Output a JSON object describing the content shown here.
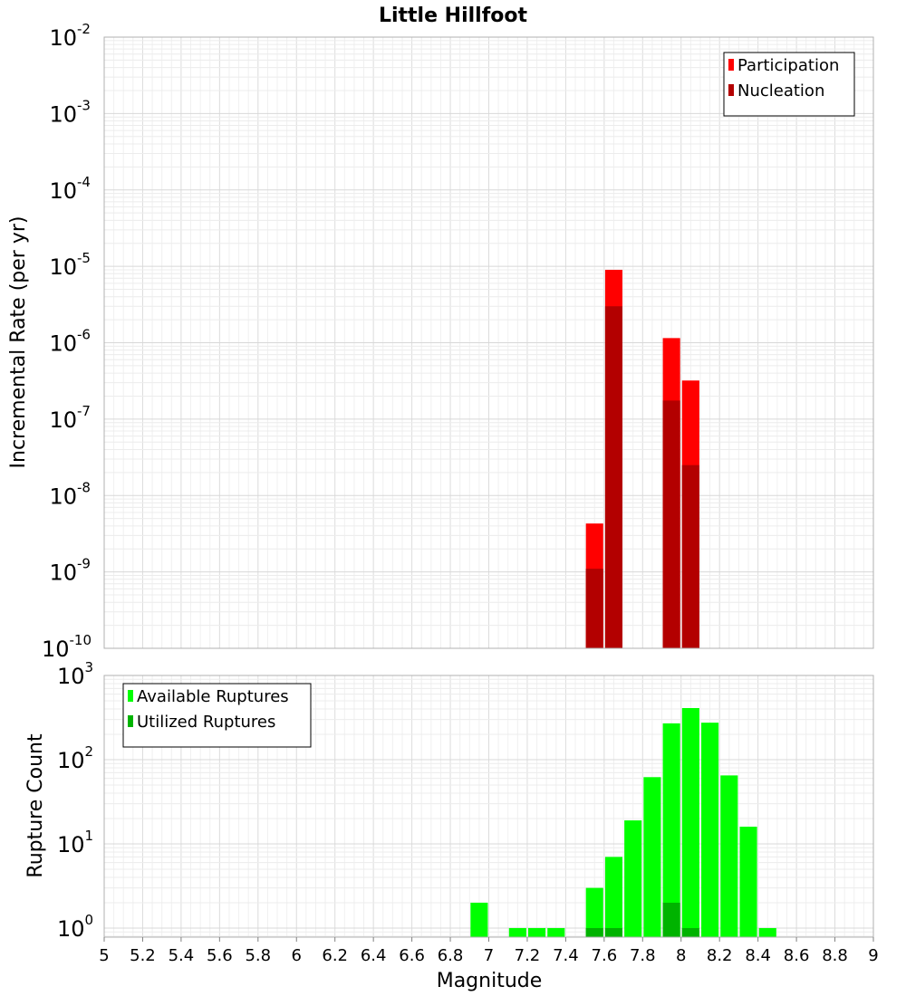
{
  "chart_data": [
    {
      "type": "bar",
      "panel": "top",
      "title": "Little Hillfoot",
      "xlabel": "",
      "ylabel": "Incremental Rate (per yr)",
      "yscale": "log",
      "xlim": [
        5,
        9
      ],
      "ylim": [
        1e-10,
        0.01
      ],
      "y_ticks": [
        {
          "base": "10",
          "exp": "-10"
        },
        {
          "base": "10",
          "exp": "-9"
        },
        {
          "base": "10",
          "exp": "-8"
        },
        {
          "base": "10",
          "exp": "-7"
        },
        {
          "base": "10",
          "exp": "-6"
        },
        {
          "base": "10",
          "exp": "-5"
        },
        {
          "base": "10",
          "exp": "-4"
        },
        {
          "base": "10",
          "exp": "-3"
        },
        {
          "base": "10",
          "exp": "-2"
        }
      ],
      "legend_position": "top-right",
      "series": [
        {
          "name": "Participation",
          "color": "#ff0000",
          "points": [
            [
              7.55,
              4.3e-09
            ],
            [
              7.65,
              9e-06
            ],
            [
              7.95,
              1.15e-06
            ],
            [
              8.05,
              3.2e-07
            ]
          ]
        },
        {
          "name": "Nucleation",
          "color": "#b30000",
          "points": [
            [
              7.55,
              1.1e-09
            ],
            [
              7.65,
              3e-06
            ],
            [
              7.95,
              1.75e-07
            ],
            [
              8.05,
              2.5e-08
            ]
          ]
        }
      ]
    },
    {
      "type": "bar",
      "panel": "bottom",
      "title": "",
      "xlabel": "Magnitude",
      "ylabel": "Rupture Count",
      "yscale": "log",
      "xlim": [
        5,
        9
      ],
      "ylim": [
        0.78,
        1000
      ],
      "x_ticks": [
        "5",
        "5.2",
        "5.4",
        "5.6",
        "5.8",
        "6",
        "6.2",
        "6.4",
        "6.6",
        "6.8",
        "7",
        "7.2",
        "7.4",
        "7.6",
        "7.8",
        "8",
        "8.2",
        "8.4",
        "8.6",
        "8.8",
        "9"
      ],
      "y_ticks": [
        {
          "base": "10",
          "exp": "0"
        },
        {
          "base": "10",
          "exp": "1"
        },
        {
          "base": "10",
          "exp": "2"
        },
        {
          "base": "10",
          "exp": "3"
        }
      ],
      "legend_position": "top-left",
      "series": [
        {
          "name": "Available Ruptures",
          "color": "#00ff00",
          "points": [
            [
              6.95,
              2
            ],
            [
              7.15,
              1
            ],
            [
              7.25,
              1
            ],
            [
              7.35,
              1
            ],
            [
              7.55,
              3
            ],
            [
              7.65,
              7
            ],
            [
              7.75,
              19
            ],
            [
              7.85,
              62
            ],
            [
              7.95,
              270
            ],
            [
              8.05,
              410
            ],
            [
              8.15,
              275
            ],
            [
              8.25,
              65
            ],
            [
              8.35,
              16
            ],
            [
              8.45,
              1
            ]
          ]
        },
        {
          "name": "Utilized Ruptures",
          "color": "#00b300",
          "points": [
            [
              7.55,
              1
            ],
            [
              7.65,
              1
            ],
            [
              7.95,
              2
            ],
            [
              8.05,
              1
            ]
          ]
        }
      ]
    }
  ]
}
